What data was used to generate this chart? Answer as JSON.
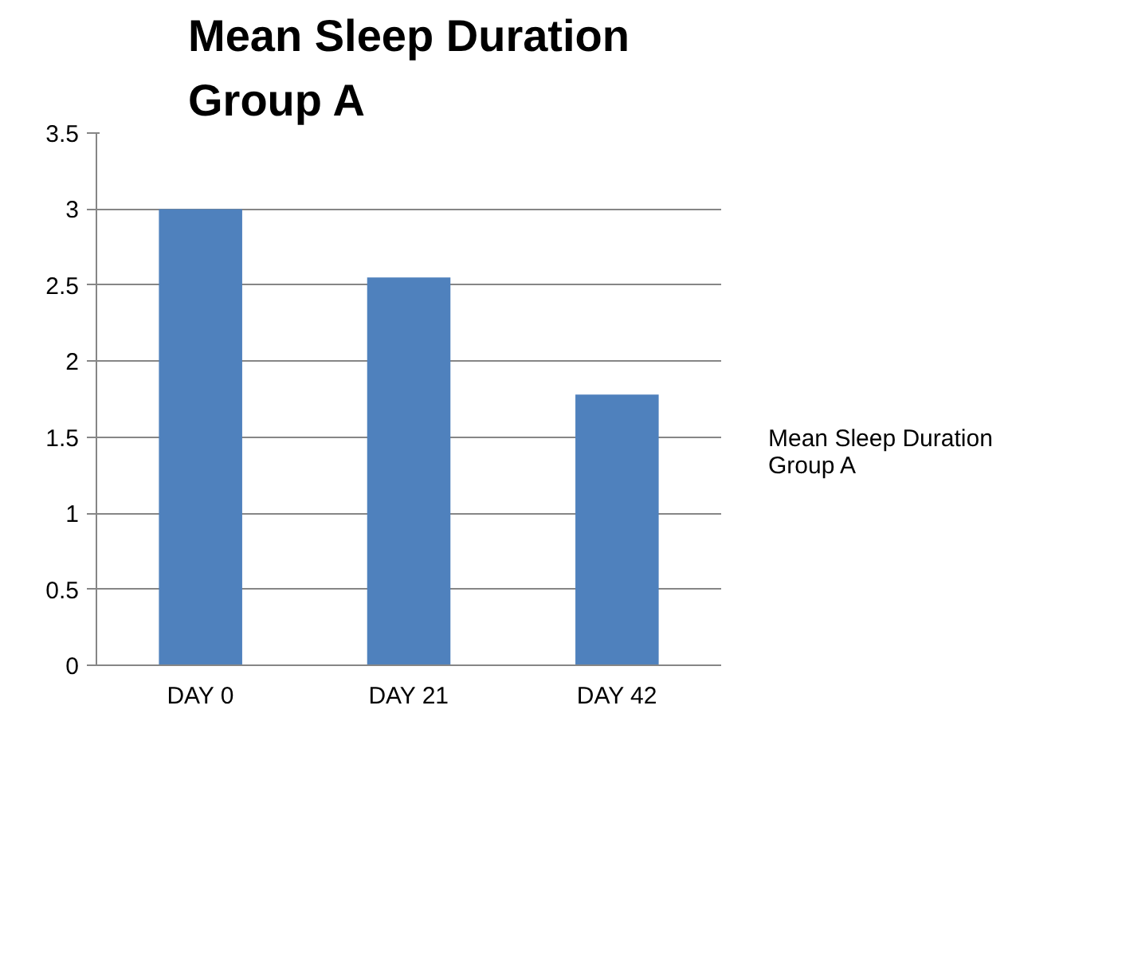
{
  "chart_data": {
    "type": "bar",
    "title": "Mean Sleep Duration\nGroup A",
    "categories": [
      "DAY 0",
      "DAY 21",
      "DAY 42"
    ],
    "series": [
      {
        "name": "Mean Sleep Duration Group A",
        "color": "#4f81bd",
        "values": [
          3.0,
          2.55,
          1.78
        ]
      }
    ],
    "ylim": [
      0,
      3.5
    ],
    "yticks": [
      0,
      0.5,
      1,
      1.5,
      2,
      2.5,
      3,
      3.5
    ],
    "grid": "y",
    "legend": "right"
  }
}
